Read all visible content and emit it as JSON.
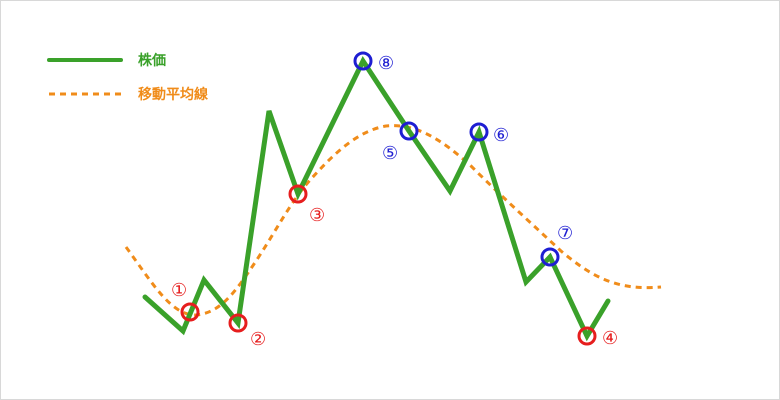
{
  "legend": {
    "price_label": "株価",
    "ma_label": "移動平均線"
  },
  "colors": {
    "price": "#3aa12a",
    "moving_average": "#f08c1a",
    "buy_marker": "#e61e1e",
    "sell_marker": "#1e1ed2",
    "border": "#d8d8d8"
  },
  "markers": [
    {
      "id": "1",
      "label": "①",
      "kind": "buy"
    },
    {
      "id": "2",
      "label": "②",
      "kind": "buy"
    },
    {
      "id": "3",
      "label": "③",
      "kind": "buy"
    },
    {
      "id": "4",
      "label": "④",
      "kind": "buy"
    },
    {
      "id": "5",
      "label": "⑤",
      "kind": "sell"
    },
    {
      "id": "6",
      "label": "⑥",
      "kind": "sell"
    },
    {
      "id": "7",
      "label": "⑦",
      "kind": "sell"
    },
    {
      "id": "8",
      "label": "⑧",
      "kind": "sell"
    }
  ]
}
